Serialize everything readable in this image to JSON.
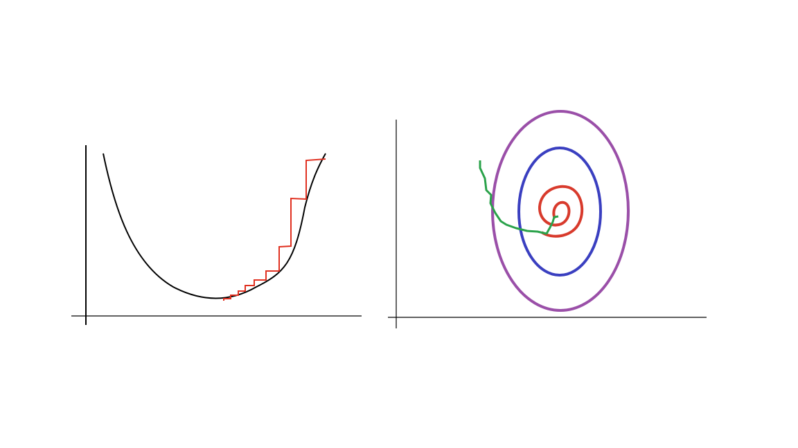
{
  "colors": {
    "axis": "#000000",
    "curve": "#000000",
    "gd_steps": "#e03020",
    "contour_outer": "#9a4fa8",
    "contour_middle": "#3a3fc0",
    "contour_inner": "#d83a2c",
    "gd_path": "#2aa24a"
  },
  "left_panel": {
    "description_name": "gradient-descent-on-parabola",
    "axes_labels": {
      "x": "",
      "y": ""
    }
  },
  "right_panel": {
    "description_name": "gradient-descent-on-contours",
    "axes_labels": {
      "x": "",
      "y": ""
    }
  }
}
